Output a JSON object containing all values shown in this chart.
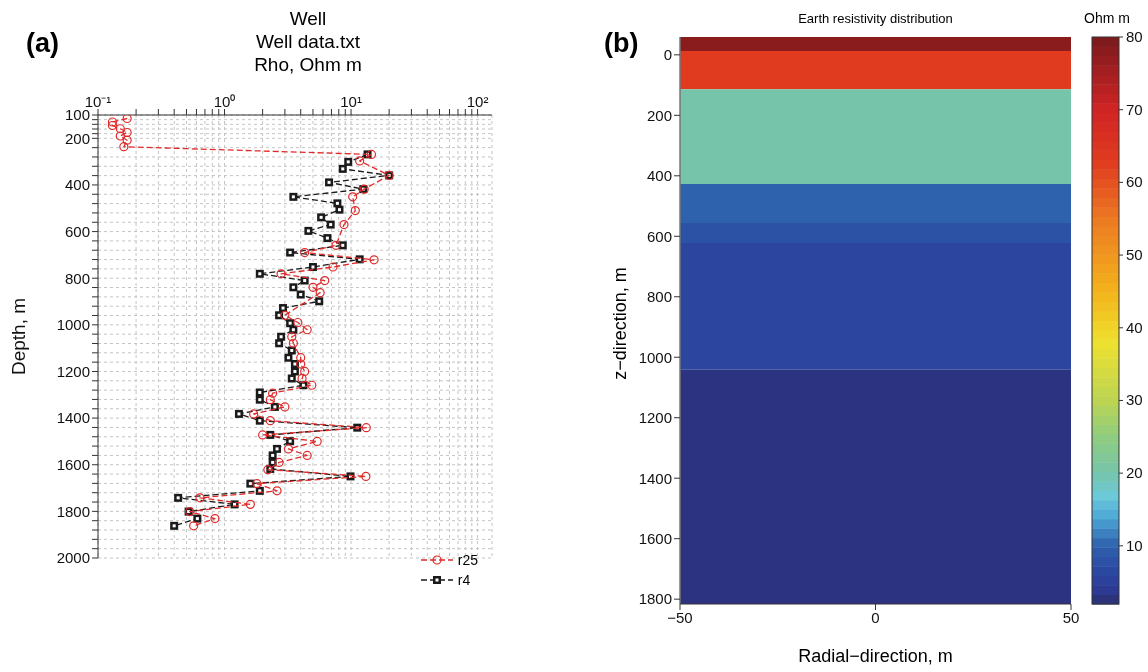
{
  "chart_data": [
    {
      "type": "line",
      "title": "Well",
      "subtitle": "Well data.txt",
      "xlabel": "Rho, Ohm m",
      "ylabel": "Depth, m",
      "annotations": [
        "(a)"
      ],
      "log": "x",
      "grid": true,
      "legend": "bottom right",
      "xlim": [
        0.1,
        130
      ],
      "xticks": [
        {
          "value": 0.1,
          "label": "10⁻¹"
        },
        {
          "value": 0.2,
          "label": null
        },
        {
          "value": 0.3,
          "label": null
        },
        {
          "value": 0.4,
          "label": null
        },
        {
          "value": 0.5,
          "label": null
        },
        {
          "value": 0.6,
          "label": null
        },
        {
          "value": 0.7,
          "label": null
        },
        {
          "value": 0.8,
          "label": null
        },
        {
          "value": 0.9,
          "label": null
        },
        {
          "value": 1,
          "label": "10⁰"
        },
        {
          "value": 2,
          "label": null
        },
        {
          "value": 3,
          "label": null
        },
        {
          "value": 4,
          "label": null
        },
        {
          "value": 5,
          "label": null
        },
        {
          "value": 6,
          "label": null
        },
        {
          "value": 7,
          "label": null
        },
        {
          "value": 8,
          "label": null
        },
        {
          "value": 9,
          "label": null
        },
        {
          "value": 10,
          "label": "10¹"
        },
        {
          "value": 20,
          "label": null
        },
        {
          "value": 30,
          "label": null
        },
        {
          "value": 40,
          "label": null
        },
        {
          "value": 50,
          "label": null
        },
        {
          "value": 60,
          "label": null
        },
        {
          "value": 70,
          "label": null
        },
        {
          "value": 80,
          "label": null
        },
        {
          "value": 90,
          "label": null
        },
        {
          "value": 100,
          "label": "10²"
        }
      ],
      "ylim": [
        2000,
        100
      ],
      "yticks": [
        100,
        {
          "value": 120,
          "label": null
        },
        {
          "value": 140,
          "label": null
        },
        {
          "value": 160,
          "label": null
        },
        {
          "value": 180,
          "label": null
        },
        200,
        {
          "value": 240,
          "label": null
        },
        {
          "value": 280,
          "label": null
        },
        {
          "value": 320,
          "label": null
        },
        {
          "value": 360,
          "label": null
        },
        400,
        {
          "value": 440,
          "label": null
        },
        {
          "value": 480,
          "label": null
        },
        {
          "value": 520,
          "label": null
        },
        {
          "value": 560,
          "label": null
        },
        600,
        {
          "value": 640,
          "label": null
        },
        {
          "value": 680,
          "label": null
        },
        {
          "value": 720,
          "label": null
        },
        {
          "value": 760,
          "label": null
        },
        800,
        {
          "value": 840,
          "label": null
        },
        {
          "value": 880,
          "label": null
        },
        {
          "value": 920,
          "label": null
        },
        {
          "value": 960,
          "label": null
        },
        1000,
        {
          "value": 1040,
          "label": null
        },
        {
          "value": 1080,
          "label": null
        },
        {
          "value": 1120,
          "label": null
        },
        {
          "value": 1160,
          "label": null
        },
        1200,
        {
          "value": 1240,
          "label": null
        },
        {
          "value": 1280,
          "label": null
        },
        {
          "value": 1320,
          "label": null
        },
        {
          "value": 1360,
          "label": null
        },
        1400,
        {
          "value": 1440,
          "label": null
        },
        {
          "value": 1480,
          "label": null
        },
        {
          "value": 1520,
          "label": null
        },
        {
          "value": 1560,
          "label": null
        },
        1600,
        {
          "value": 1640,
          "label": null
        },
        {
          "value": 1680,
          "label": null
        },
        {
          "value": 1720,
          "label": null
        },
        {
          "value": 1760,
          "label": null
        },
        1800,
        {
          "value": 1840,
          "label": null
        },
        {
          "value": 1880,
          "label": null
        },
        {
          "value": 1920,
          "label": null
        },
        {
          "value": 1960,
          "label": null
        },
        2000
      ],
      "series": [
        {
          "name": "r25",
          "color": "#e02a2a",
          "marker": "circle",
          "line_style": "dashed",
          "x": [
            0.17,
            0.13,
            0.13,
            0.15,
            0.17,
            0.15,
            0.17,
            0.16,
            14.5,
            11.7,
            20,
            12.7,
            10.3,
            10.8,
            8.8,
            7.6,
            4.3,
            15.2,
            7.2,
            2.8,
            6.2,
            5.0,
            5.7,
            3.0,
            3.8,
            4.5,
            3.4,
            3.5,
            4.0,
            4.0,
            4.3,
            4.1,
            4.9,
            2.4,
            2.3,
            3.0,
            1.7,
            2.3,
            13.2,
            2.0,
            5.4,
            3.2,
            4.5,
            2.7,
            2.2,
            13.1,
            1.8,
            2.6,
            0.64,
            1.6,
            0.53,
            0.84,
            0.57
          ],
          "values": [
            115,
            130,
            145,
            159,
            175,
            190,
            208,
            236,
            269,
            297,
            359,
            418,
            451,
            510,
            570,
            659,
            690,
            721,
            752,
            781,
            810,
            839,
            862,
            959,
            990,
            1021,
            1051,
            1079,
            1141,
            1168,
            1200,
            1230,
            1259,
            1293,
            1321,
            1352,
            1382,
            1411,
            1441,
            1472,
            1500,
            1532,
            1560,
            1590,
            1621,
            1650,
            1681,
            1712,
            1742,
            1770,
            1801,
            1831,
            1862
          ]
        },
        {
          "name": "r4",
          "color": "#1a1a1a",
          "marker": "square",
          "line_style": "dashed",
          "x": [
            13.5,
            9.5,
            8.6,
            20,
            6.7,
            12.5,
            3.5,
            7.8,
            8.1,
            5.8,
            6.9,
            4.6,
            6.5,
            8.6,
            3.3,
            11.7,
            5.0,
            1.9,
            4.3,
            3.5,
            4.0,
            5.6,
            2.9,
            2.7,
            3.3,
            3.5,
            2.8,
            2.7,
            3.4,
            3.2,
            3.6,
            3.6,
            3.4,
            4.2,
            1.9,
            1.9,
            2.5,
            1.3,
            1.9,
            11.2,
            2.3,
            3.3,
            2.6,
            2.4,
            2.4,
            2.3,
            9.9,
            1.6,
            1.9,
            0.43,
            1.2,
            0.52,
            0.61,
            0.4
          ],
          "values": [
            269,
            301,
            331,
            359,
            389,
            418,
            451,
            479,
            506,
            539,
            570,
            597,
            628,
            659,
            690,
            719,
            752,
            781,
            810,
            839,
            870,
            899,
            928,
            959,
            993,
            1021,
            1051,
            1079,
            1110,
            1141,
            1168,
            1200,
            1230,
            1259,
            1290,
            1321,
            1352,
            1382,
            1411,
            1441,
            1472,
            1499,
            1532,
            1560,
            1590,
            1618,
            1650,
            1681,
            1712,
            1742,
            1770,
            1801,
            1831,
            1862
          ]
        }
      ]
    },
    {
      "type": "bar",
      "title": "Earth resistivity distribution",
      "xlabel": "Radial−direction, m",
      "ylabel": "z−direction, m",
      "clabel": "Ohm m",
      "annotations": [
        "(b)"
      ],
      "series": [
        {
          "x": [
            0
          ],
          "base": [
            -59
          ],
          "values": [
            46
          ],
          "cvalues": [
            78
          ]
        },
        {
          "x": [
            0
          ],
          "base": [
            -13
          ],
          "values": [
            127
          ],
          "cvalues": [
            63
          ]
        },
        {
          "x": [
            0
          ],
          "base": [
            114
          ],
          "values": [
            313
          ],
          "cvalues": [
            20
          ]
        },
        {
          "x": [
            0
          ],
          "base": [
            427
          ],
          "values": [
            129
          ],
          "cvalues": [
            10
          ]
        },
        {
          "x": [
            0
          ],
          "base": [
            556
          ],
          "values": [
            66
          ],
          "cvalues": [
            8
          ]
        },
        {
          "x": [
            0
          ],
          "base": [
            622
          ],
          "values": [
            419
          ],
          "cvalues": [
            6
          ]
        },
        {
          "x": [
            0
          ],
          "base": [
            1041
          ],
          "values": [
            775
          ],
          "cvalues": [
            3
          ]
        }
      ],
      "xlim": [
        -50,
        50
      ],
      "xticks": [
        -50,
        0,
        50
      ],
      "ylim": [
        1816,
        -59
      ],
      "yticks": [
        0,
        200,
        400,
        600,
        800,
        1000,
        1200,
        1400,
        1600,
        1800
      ],
      "clim": [
        2,
        80
      ],
      "cticks": [
        10,
        20,
        30,
        40,
        50,
        60,
        70,
        80
      ]
    }
  ]
}
